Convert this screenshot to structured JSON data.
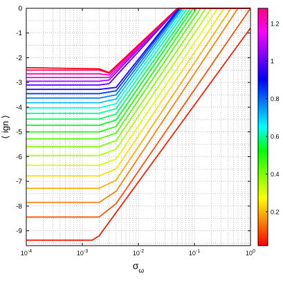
{
  "chart_data": {
    "type": "line",
    "title": "",
    "xlabel": "σ",
    "xlabel_sub": "ω",
    "ylabel": "⟨ ign ⟩",
    "x_scale": "log",
    "xlim": [
      0.0001,
      1
    ],
    "ylim": [
      -9.6,
      0
    ],
    "x_ticks": [
      {
        "base": "10",
        "exp": "-4"
      },
      {
        "base": "10",
        "exp": "-3"
      },
      {
        "base": "10",
        "exp": "-2"
      },
      {
        "base": "10",
        "exp": "-1"
      },
      {
        "base": "10",
        "exp": "0"
      }
    ],
    "y_ticks": [
      "0",
      "-1",
      "-2",
      "-3",
      "-4",
      "-5",
      "-6",
      "-7",
      "-8",
      "-9"
    ],
    "grid": "dotted",
    "colorbar": {
      "range": [
        0.02,
        1.28
      ],
      "ticks": [
        "0.2",
        "0.4",
        "0.6",
        "0.8",
        "1",
        "1.2"
      ],
      "colormap": [
        "#ff0000",
        "#ff8000",
        "#ffff00",
        "#80ff00",
        "#00ff00",
        "#00ffff",
        "#0080ff",
        "#0000ff",
        "#8000ff",
        "#ff00ff",
        "#ff0080"
      ]
    },
    "series_shape": "flat plateau at low sigma, kink near sigma≈3e-3, linear rise to 0 at high sigma",
    "series": [
      {
        "param": 0.04,
        "color": "#ff1a00",
        "values": [
          [
            0.0001,
            -9.38
          ],
          [
            0.0015,
            -9.38
          ],
          [
            0.002,
            -9.2
          ],
          [
            1,
            -0.8
          ]
        ]
      },
      {
        "param": 0.11,
        "color": "#ff5000",
        "values": [
          [
            0.0001,
            -8.44
          ],
          [
            0.002,
            -8.44
          ],
          [
            0.004,
            -7.9
          ],
          [
            1,
            0
          ]
        ]
      },
      {
        "param": 0.17,
        "color": "#ff8000",
        "values": [
          [
            0.0001,
            -7.85
          ],
          [
            0.002,
            -7.85
          ],
          [
            0.004,
            -7.4
          ],
          [
            0.6,
            0
          ]
        ]
      },
      {
        "param": 0.22,
        "color": "#ffb000",
        "values": [
          [
            0.0001,
            -7.28
          ],
          [
            0.002,
            -7.28
          ],
          [
            0.004,
            -6.95
          ],
          [
            0.45,
            0
          ]
        ]
      },
      {
        "param": 0.27,
        "color": "#ffe000",
        "values": [
          [
            0.0001,
            -6.78
          ],
          [
            0.002,
            -6.78
          ],
          [
            0.004,
            -6.5
          ],
          [
            0.34,
            0
          ]
        ]
      },
      {
        "param": 0.32,
        "color": "#e0ff00",
        "values": [
          [
            0.0001,
            -6.35
          ],
          [
            0.002,
            -6.35
          ],
          [
            0.004,
            -6.1
          ],
          [
            0.26,
            0
          ]
        ]
      },
      {
        "param": 0.36,
        "color": "#b0ff00",
        "values": [
          [
            0.0001,
            -5.95
          ],
          [
            0.002,
            -5.95
          ],
          [
            0.004,
            -5.7
          ],
          [
            0.2,
            0
          ]
        ]
      },
      {
        "param": 0.4,
        "color": "#80ff00",
        "values": [
          [
            0.0001,
            -5.6
          ],
          [
            0.002,
            -5.6
          ],
          [
            0.004,
            -5.35
          ],
          [
            0.16,
            0
          ]
        ]
      },
      {
        "param": 0.44,
        "color": "#50ff00",
        "values": [
          [
            0.0001,
            -5.28
          ],
          [
            0.002,
            -5.28
          ],
          [
            0.004,
            -5.05
          ],
          [
            0.13,
            0
          ]
        ]
      },
      {
        "param": 0.48,
        "color": "#20ff00",
        "values": [
          [
            0.0001,
            -5.0
          ],
          [
            0.002,
            -5.0
          ],
          [
            0.004,
            -4.78
          ],
          [
            0.11,
            0
          ]
        ]
      },
      {
        "param": 0.52,
        "color": "#00ff20",
        "values": [
          [
            0.0001,
            -4.73
          ],
          [
            0.002,
            -4.73
          ],
          [
            0.004,
            -4.52
          ],
          [
            0.095,
            0
          ]
        ]
      },
      {
        "param": 0.56,
        "color": "#00ff60",
        "values": [
          [
            0.0001,
            -4.48
          ],
          [
            0.002,
            -4.48
          ],
          [
            0.004,
            -4.28
          ],
          [
            0.085,
            0
          ]
        ]
      },
      {
        "param": 0.6,
        "color": "#00ffa0",
        "values": [
          [
            0.0001,
            -4.25
          ],
          [
            0.002,
            -4.25
          ],
          [
            0.004,
            -4.06
          ],
          [
            0.075,
            0
          ]
        ]
      },
      {
        "param": 0.64,
        "color": "#00ffe0",
        "values": [
          [
            0.0001,
            -4.03
          ],
          [
            0.002,
            -4.03
          ],
          [
            0.004,
            -3.86
          ],
          [
            0.068,
            0
          ]
        ]
      },
      {
        "param": 0.7,
        "color": "#00c0ff",
        "values": [
          [
            0.0001,
            -3.82
          ],
          [
            0.002,
            -3.82
          ],
          [
            0.004,
            -3.67
          ],
          [
            0.062,
            0
          ]
        ]
      },
      {
        "param": 0.76,
        "color": "#0080ff",
        "values": [
          [
            0.0001,
            -3.63
          ],
          [
            0.002,
            -3.63
          ],
          [
            0.004,
            -3.5
          ],
          [
            0.058,
            0
          ]
        ]
      },
      {
        "param": 0.82,
        "color": "#0040ff",
        "values": [
          [
            0.0001,
            -3.45
          ],
          [
            0.002,
            -3.45
          ],
          [
            0.004,
            -3.34
          ],
          [
            0.055,
            0
          ]
        ]
      },
      {
        "param": 0.88,
        "color": "#2000ff",
        "values": [
          [
            0.0001,
            -3.28
          ],
          [
            0.002,
            -3.28
          ],
          [
            0.004,
            -3.2
          ],
          [
            0.053,
            0
          ]
        ]
      },
      {
        "param": 0.95,
        "color": "#6000ff",
        "values": [
          [
            0.0001,
            -3.1
          ],
          [
            0.002,
            -3.1
          ],
          [
            0.003,
            -3.05
          ],
          [
            0.051,
            0
          ]
        ]
      },
      {
        "param": 1.02,
        "color": "#a000ff",
        "values": [
          [
            0.0001,
            -2.95
          ],
          [
            0.002,
            -2.95
          ],
          [
            0.003,
            -2.9
          ],
          [
            0.05,
            0
          ]
        ]
      },
      {
        "param": 1.1,
        "color": "#e000ff",
        "values": [
          [
            0.0001,
            -2.8
          ],
          [
            0.002,
            -2.8
          ],
          [
            0.003,
            -2.8
          ],
          [
            0.05,
            0
          ]
        ]
      },
      {
        "param": 1.18,
        "color": "#ff00c0",
        "values": [
          [
            0.0001,
            -2.65
          ],
          [
            0.002,
            -2.65
          ],
          [
            0.003,
            -2.7
          ],
          [
            0.05,
            0
          ]
        ]
      },
      {
        "param": 1.25,
        "color": "#ff0060",
        "values": [
          [
            0.0001,
            -2.5
          ],
          [
            0.002,
            -2.5
          ],
          [
            0.003,
            -2.62
          ],
          [
            0.05,
            0
          ]
        ]
      },
      {
        "param": 1.28,
        "color": "#ff0010",
        "values": [
          [
            0.0001,
            -2.4
          ],
          [
            0.002,
            -2.45
          ],
          [
            0.003,
            -2.6
          ],
          [
            0.05,
            0
          ]
        ]
      }
    ]
  }
}
